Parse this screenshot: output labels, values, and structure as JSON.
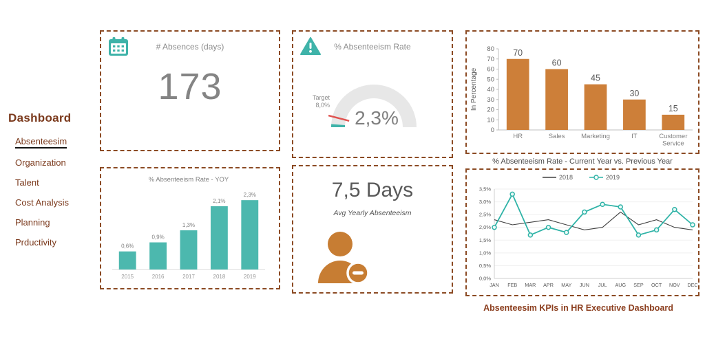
{
  "page": {
    "bottom_caption": "Absenteesim KPIs in HR Executive Dashboard"
  },
  "sidebar": {
    "title": "Dashboard",
    "items": [
      {
        "label": "Absenteesim",
        "active": true
      },
      {
        "label": "Organization",
        "active": false
      },
      {
        "label": "Talent",
        "active": false
      },
      {
        "label": "Cost Analysis",
        "active": false
      },
      {
        "label": "Planning",
        "active": false
      },
      {
        "label": "Prductivity",
        "active": false
      }
    ]
  },
  "panels": {
    "absences": {
      "icon": "calendar-icon",
      "label": "# Absences (days)",
      "value": "173"
    },
    "rate": {
      "icon": "warning-icon",
      "label": "% Absenteeism Rate",
      "value_label": "2,3%",
      "target_label": "Target",
      "target_value": "8,0%"
    },
    "dept_caption": "% Absenteeism Rate - Current Year vs. Previous Year",
    "avg_days": {
      "value": "7,5 Days",
      "label": "Avg  Yearly Absenteeism",
      "icon": "person-minus-icon"
    }
  },
  "colors": {
    "teal": "#3fb3a9",
    "orange": "#cd7f39",
    "brown": "#8b4a23",
    "red": "#e0524f",
    "gray_text": "#8c8c8c"
  },
  "chart_data": [
    {
      "id": "dept_bar",
      "type": "bar",
      "categories": [
        "HR",
        "Sales",
        "Marketing",
        "IT",
        "Customer Service"
      ],
      "values": [
        70,
        60,
        45,
        30,
        15
      ],
      "ylabel": "In Percentage",
      "ylim": [
        0,
        80
      ],
      "yticks": [
        0,
        10,
        20,
        30,
        40,
        50,
        60,
        70,
        80
      ],
      "bar_color": "#cd7f39"
    },
    {
      "id": "yoy_bar",
      "type": "bar",
      "title": "% Absenteeism Rate - YOY",
      "categories": [
        "2015",
        "2016",
        "2017",
        "2018",
        "2019"
      ],
      "values": [
        0.6,
        0.9,
        1.3,
        2.1,
        2.3
      ],
      "value_labels": [
        "0,6%",
        "0,9%",
        "1,3%",
        "2,1%",
        "2,3%"
      ],
      "ylim": [
        0,
        2.6
      ],
      "bar_color": "#4cb8ae"
    },
    {
      "id": "monthly_line",
      "type": "line",
      "categories": [
        "JAN",
        "FEB",
        "MAR",
        "APR",
        "MAY",
        "JUN",
        "JUL",
        "AUG",
        "SEP",
        "OCT",
        "NOV",
        "DEC"
      ],
      "series": [
        {
          "name": "2018",
          "color": "#404040",
          "marker": false,
          "values": [
            2.3,
            2.1,
            2.2,
            2.3,
            2.1,
            1.9,
            2.0,
            2.6,
            2.1,
            2.3,
            2.0,
            1.9
          ]
        },
        {
          "name": "2019",
          "color": "#2fb3a7",
          "marker": true,
          "values": [
            2.0,
            3.3,
            1.7,
            2.0,
            1.8,
            2.6,
            2.9,
            2.8,
            1.7,
            1.9,
            2.7,
            2.1
          ]
        }
      ],
      "ylim": [
        0,
        3.5
      ],
      "ytick_values": [
        0,
        0.5,
        1,
        1.5,
        2,
        2.5,
        3,
        3.5
      ],
      "ytick_labels": [
        "0,0%",
        "0,5%",
        "1,0%",
        "1,5%",
        "2,0%",
        "2,5%",
        "3,0%",
        "3,5%"
      ],
      "legend_position": "top"
    },
    {
      "id": "gauge",
      "type": "gauge",
      "value": 2.3,
      "value_label": "2,3%",
      "target": 8.0,
      "range": [
        0,
        100
      ]
    }
  ]
}
